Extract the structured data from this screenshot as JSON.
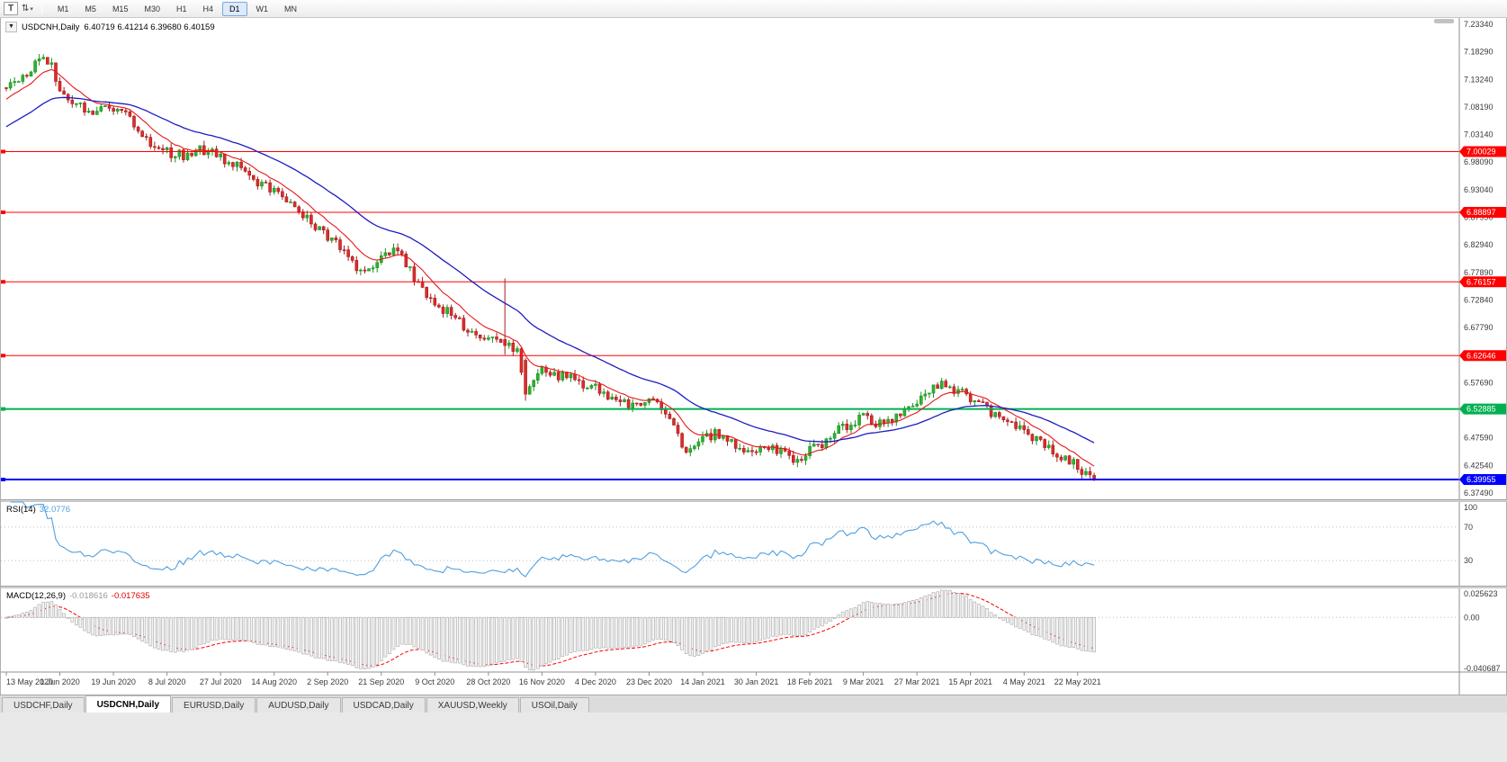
{
  "toolbar": {
    "tool_button": "T",
    "cursor_icon": "⇅",
    "timeframes": [
      "M1",
      "M5",
      "M15",
      "M30",
      "H1",
      "H4",
      "D1",
      "W1",
      "MN"
    ],
    "active_timeframe": "D1"
  },
  "window": {
    "tabs": [
      "USDCHF,Daily",
      "USDCNH,Daily",
      "EURUSD,Daily",
      "AUDUSD,Daily",
      "USDCAD,Daily",
      "XAUUSD,Weekly",
      "USOil,Daily"
    ],
    "active_tab": "USDCNH,Daily"
  },
  "colors": {
    "bull": "#1f8f24",
    "bull_fill": "#2db32d",
    "bear": "#a51d1d",
    "bear_fill": "#dd2c2c",
    "axis_text": "#3a3a3a",
    "level_dotted": "#bdbdbd"
  },
  "chart_data": {
    "type": "candlestick",
    "symbol": "USDCNH,Daily",
    "ohlc_line": "6.40719 6.41214 6.39680 6.40159",
    "open": "6.40719",
    "high": "6.41214",
    "low": "6.39680",
    "close": "6.40159",
    "bar_count": 265,
    "bars_per_label": 13,
    "price_max": 7.2334,
    "price_min": 6.3749,
    "price_axis_ticks": [
      "7.23340",
      "7.18290",
      "7.13240",
      "7.08190",
      "7.03140",
      "6.98090",
      "6.93040",
      "6.87990",
      "6.82940",
      "6.77890",
      "6.72840",
      "6.67790",
      "6.62740",
      "6.57690",
      "6.52640",
      "6.47590",
      "6.42540",
      "6.37490"
    ],
    "hlines": [
      {
        "price": 7.00029,
        "label": "7.00029",
        "color": "#ff0000",
        "width": 1
      },
      {
        "price": 6.88897,
        "label": "6.88897",
        "color": "#ff0000",
        "width": 1
      },
      {
        "price": 6.76157,
        "label": "6.76157",
        "color": "#ff0000",
        "width": 1
      },
      {
        "price": 6.62646,
        "label": "6.62646",
        "color": "#ff0000",
        "width": 1
      },
      {
        "price": 6.52885,
        "label": "6.52885",
        "color": "#00b050",
        "width": 2
      },
      {
        "price": 6.39955,
        "label": "6.39955",
        "color": "#0000ff",
        "width": 2
      }
    ],
    "x_labels": [
      "13 May 2020",
      "1 Jun 2020",
      "19 Jun 2020",
      "8 Jul 2020",
      "27 Jul 2020",
      "14 Aug 2020",
      "2 Sep 2020",
      "21 Sep 2020",
      "9 Oct 2020",
      "28 Oct 2020",
      "16 Nov 2020",
      "4 Dec 2020",
      "23 Dec 2020",
      "14 Jan 2021",
      "30 Jan 2021",
      "18 Feb 2021",
      "9 Mar 2021",
      "27 Mar 2021",
      "15 Apr 2021",
      "4 May 2021",
      "22 May 2021"
    ],
    "anchors": [
      [
        0,
        7.112
      ],
      [
        3,
        7.135
      ],
      [
        6,
        7.152
      ],
      [
        9,
        7.176
      ],
      [
        11,
        7.156
      ],
      [
        13,
        7.118
      ],
      [
        16,
        7.096
      ],
      [
        20,
        7.07
      ],
      [
        23,
        7.083
      ],
      [
        26,
        7.076
      ],
      [
        30,
        7.061
      ],
      [
        34,
        7.018
      ],
      [
        39,
        6.999
      ],
      [
        43,
        6.993
      ],
      [
        47,
        7.005
      ],
      [
        52,
        6.991
      ],
      [
        56,
        6.974
      ],
      [
        60,
        6.944
      ],
      [
        65,
        6.928
      ],
      [
        70,
        6.9
      ],
      [
        74,
        6.872
      ],
      [
        78,
        6.842
      ],
      [
        82,
        6.818
      ],
      [
        86,
        6.781
      ],
      [
        89,
        6.791
      ],
      [
        92,
        6.813
      ],
      [
        95,
        6.825
      ],
      [
        98,
        6.782
      ],
      [
        101,
        6.746
      ],
      [
        104,
        6.722
      ],
      [
        108,
        6.701
      ],
      [
        112,
        6.672
      ],
      [
        115,
        6.652
      ],
      [
        117,
        6.664
      ],
      [
        120,
        6.655
      ],
      [
        122,
        6.649
      ],
      [
        124,
        6.636
      ],
      [
        126,
        6.558
      ],
      [
        128,
        6.588
      ],
      [
        130,
        6.601
      ],
      [
        133,
        6.587
      ],
      [
        136,
        6.591
      ],
      [
        139,
        6.578
      ],
      [
        143,
        6.566
      ],
      [
        146,
        6.553
      ],
      [
        149,
        6.546
      ],
      [
        152,
        6.533
      ],
      [
        156,
        6.542
      ],
      [
        159,
        6.529
      ],
      [
        162,
        6.504
      ],
      [
        164,
        6.463
      ],
      [
        166,
        6.448
      ],
      [
        169,
        6.473
      ],
      [
        172,
        6.483
      ],
      [
        175,
        6.469
      ],
      [
        178,
        6.459
      ],
      [
        182,
        6.453
      ],
      [
        185,
        6.463
      ],
      [
        188,
        6.449
      ],
      [
        191,
        6.434
      ],
      [
        193,
        6.443
      ],
      [
        195,
        6.456
      ],
      [
        198,
        6.463
      ],
      [
        201,
        6.488
      ],
      [
        204,
        6.499
      ],
      [
        208,
        6.515
      ],
      [
        211,
        6.504
      ],
      [
        214,
        6.509
      ],
      [
        217,
        6.518
      ],
      [
        221,
        6.542
      ],
      [
        224,
        6.563
      ],
      [
        227,
        6.573
      ],
      [
        229,
        6.569
      ],
      [
        232,
        6.557
      ],
      [
        234,
        6.547
      ],
      [
        237,
        6.533
      ],
      [
        240,
        6.515
      ],
      [
        243,
        6.504
      ],
      [
        247,
        6.488
      ],
      [
        250,
        6.473
      ],
      [
        253,
        6.459
      ],
      [
        256,
        6.444
      ],
      [
        258,
        6.436
      ],
      [
        260,
        6.419
      ],
      [
        262,
        6.409
      ],
      [
        264,
        6.4016
      ]
    ],
    "special_bars": {
      "121": {
        "o": 6.656,
        "h": 6.768,
        "l": 6.628,
        "c": 6.645
      },
      "126": {
        "o": 6.618,
        "h": 6.622,
        "l": 6.544,
        "c": 6.556
      },
      "264": {
        "o": 6.40719,
        "h": 6.41214,
        "l": 6.3968,
        "c": 6.40159
      }
    },
    "moving_averages": [
      {
        "name": "fast",
        "period": 10,
        "color": "#e81717"
      },
      {
        "name": "slow",
        "period": 34,
        "color": "#1d1dbf"
      }
    ],
    "rsi": {
      "label": "RSI(14)",
      "value": "32.0776",
      "period": 14,
      "levels": [
        70,
        30
      ],
      "range": [
        0,
        100
      ],
      "axis_ticks": [
        "100",
        "70",
        "30"
      ],
      "color": "#4f9fe0"
    },
    "macd": {
      "label": "MACD(12,26,9)",
      "main_value": "-0.018616",
      "signal_value": "-0.017635",
      "fast": 12,
      "slow": 26,
      "signal": 9,
      "axis_ticks": [
        "0.025623",
        "0.00",
        "-0.040687"
      ],
      "histogram_stroke": "#b2b2b2",
      "histogram_fill": "#f4f4f4",
      "signal_color": "#ff0000"
    }
  }
}
